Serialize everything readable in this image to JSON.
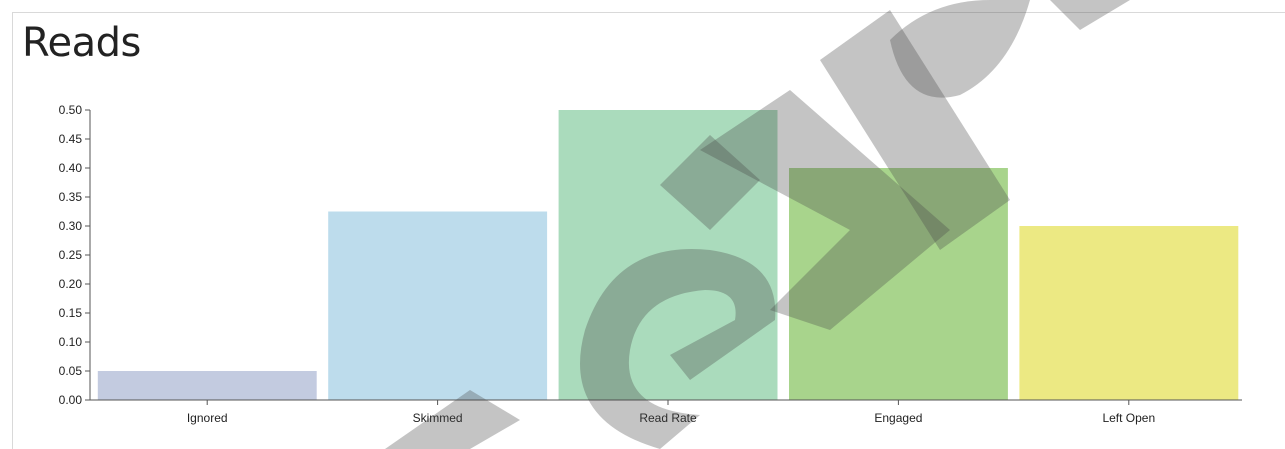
{
  "panel": {
    "title": "Reads"
  },
  "chart_data": {
    "type": "bar",
    "title": "Reads",
    "categories": [
      "Ignored",
      "Skimmed",
      "Read Rate",
      "Engaged",
      "Left Open"
    ],
    "values": [
      0.05,
      0.325,
      0.5,
      0.4,
      0.3
    ],
    "colors": [
      "#c3cbe0",
      "#bddcec",
      "#aadbbc",
      "#a8d48c",
      "#ece983"
    ],
    "ylim": [
      0,
      0.5
    ],
    "yticks": [
      "0.00",
      "0.05",
      "0.10",
      "0.15",
      "0.20",
      "0.25",
      "0.30",
      "0.35",
      "0.40",
      "0.45",
      "0.50"
    ],
    "xlabel": "",
    "ylabel": "",
    "grid": false
  }
}
